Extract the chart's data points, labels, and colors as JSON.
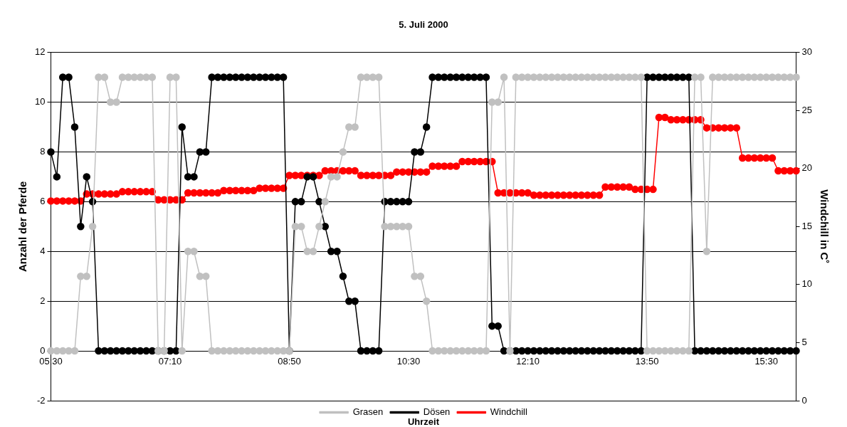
{
  "chart_data": {
    "type": "line",
    "title": "5. Juli 2000",
    "xlabel": "Uhrzeit",
    "ylabel": "Anzahl der Pferde",
    "y2label": "Windchill in C˚",
    "categories": [
      "05:30",
      null,
      null,
      null,
      null,
      null,
      null,
      null,
      null,
      null,
      null,
      null,
      null,
      null,
      null,
      null,
      null,
      null,
      null,
      null,
      "07:10",
      null,
      null,
      null,
      null,
      null,
      null,
      null,
      null,
      null,
      null,
      null,
      null,
      null,
      null,
      null,
      null,
      null,
      null,
      null,
      "08:50",
      null,
      null,
      null,
      null,
      null,
      null,
      null,
      null,
      null,
      null,
      null,
      null,
      null,
      null,
      null,
      null,
      null,
      null,
      null,
      "10:30",
      null,
      null,
      null,
      null,
      null,
      null,
      null,
      null,
      null,
      null,
      null,
      null,
      null,
      null,
      null,
      null,
      null,
      null,
      null,
      "12:10",
      null,
      null,
      null,
      null,
      null,
      null,
      null,
      null,
      null,
      null,
      null,
      null,
      null,
      null,
      null,
      null,
      null,
      null,
      null,
      "13:50",
      null,
      null,
      null,
      null,
      null,
      null,
      null,
      null,
      null,
      null,
      null,
      null,
      null,
      null,
      null,
      null,
      null,
      null,
      null,
      "15:30",
      null,
      null,
      null,
      null,
      null
    ],
    "series": [
      {
        "name": "Grasen",
        "color": "#c0c0c0",
        "values": [
          0,
          0,
          0,
          0,
          0,
          3,
          3,
          5,
          11,
          11,
          10,
          10,
          11,
          11,
          11,
          11,
          11,
          11,
          0,
          0,
          11,
          11,
          0,
          4,
          4,
          3,
          3,
          0,
          0,
          0,
          0,
          0,
          0,
          0,
          0,
          0,
          0,
          0,
          0,
          0,
          0,
          5,
          5,
          4,
          4,
          5,
          6,
          7,
          7,
          8,
          9,
          9,
          11,
          11,
          11,
          11,
          5,
          5,
          5,
          5,
          5,
          3,
          3,
          2,
          0,
          0,
          0,
          0,
          0,
          0,
          0,
          0,
          0,
          0,
          10,
          10,
          11,
          0,
          11,
          11,
          11,
          11,
          11,
          11,
          11,
          11,
          11,
          11,
          11,
          11,
          11,
          11,
          11,
          11,
          11,
          11,
          11,
          11,
          11,
          11,
          0,
          0,
          0,
          0,
          0,
          0,
          0,
          0,
          11,
          11,
          4,
          11,
          11,
          11,
          11,
          11,
          11,
          11,
          11,
          11,
          11,
          11,
          11,
          11,
          11,
          11
        ]
      },
      {
        "name": "Dösen",
        "color": "#000000",
        "values": [
          8,
          7,
          11,
          11,
          9,
          5,
          7,
          6,
          0,
          0,
          0,
          0,
          0,
          0,
          0,
          0,
          0,
          0,
          0,
          0,
          0,
          0,
          9,
          7,
          7,
          8,
          8,
          11,
          11,
          11,
          11,
          11,
          11,
          11,
          11,
          11,
          11,
          11,
          11,
          11,
          0,
          6,
          6,
          7,
          7,
          6,
          5,
          4,
          4,
          3,
          2,
          2,
          0,
          0,
          0,
          0,
          6,
          6,
          6,
          6,
          6,
          8,
          8,
          9,
          11,
          11,
          11,
          11,
          11,
          11,
          11,
          11,
          11,
          11,
          1,
          1,
          0,
          0,
          0,
          0,
          0,
          0,
          0,
          0,
          0,
          0,
          0,
          0,
          0,
          0,
          0,
          0,
          0,
          0,
          0,
          0,
          0,
          0,
          0,
          0,
          11,
          11,
          11,
          11,
          11,
          11,
          11,
          11,
          0,
          0,
          0,
          0,
          0,
          0,
          0,
          0,
          0,
          0,
          0,
          0,
          0,
          0,
          0,
          0,
          0,
          0
        ]
      },
      {
        "name": "Windchill",
        "color": "#ff0000",
        "axis": "y2",
        "values": [
          17.2,
          17.2,
          17.2,
          17.2,
          17.2,
          17.2,
          17.8,
          17.8,
          17.8,
          17.8,
          17.8,
          17.8,
          18.0,
          18.0,
          18.0,
          18.0,
          18.0,
          18.0,
          17.3,
          17.3,
          17.3,
          17.3,
          17.3,
          17.9,
          17.9,
          17.9,
          17.9,
          17.9,
          17.9,
          18.1,
          18.1,
          18.1,
          18.1,
          18.1,
          18.1,
          18.3,
          18.3,
          18.3,
          18.3,
          18.3,
          19.4,
          19.4,
          19.4,
          19.4,
          19.4,
          19.4,
          19.8,
          19.8,
          19.8,
          19.8,
          19.8,
          19.8,
          19.4,
          19.4,
          19.4,
          19.4,
          19.4,
          19.4,
          19.7,
          19.7,
          19.7,
          19.7,
          19.7,
          19.7,
          20.2,
          20.2,
          20.2,
          20.2,
          20.2,
          20.6,
          20.6,
          20.6,
          20.6,
          20.6,
          20.6,
          17.9,
          17.9,
          17.9,
          17.9,
          17.9,
          17.9,
          17.7,
          17.7,
          17.7,
          17.7,
          17.7,
          17.7,
          17.7,
          17.7,
          17.7,
          17.7,
          17.7,
          17.7,
          18.4,
          18.4,
          18.4,
          18.4,
          18.4,
          18.2,
          18.2,
          18.2,
          18.2,
          24.4,
          24.4,
          24.2,
          24.2,
          24.2,
          24.2,
          24.2,
          24.2,
          23.5,
          23.5,
          23.5,
          23.5,
          23.5,
          23.5,
          20.9,
          20.9,
          20.9,
          20.9,
          20.9,
          20.9,
          19.8,
          19.8,
          19.8,
          19.8
        ]
      }
    ],
    "ylim": [
      -2,
      12
    ],
    "yticks": [
      -2,
      0,
      2,
      4,
      6,
      8,
      10,
      12
    ],
    "y2lim": [
      0,
      30
    ],
    "y2ticks": [
      0,
      5,
      10,
      15,
      20,
      25,
      30
    ],
    "grid": "y",
    "legend": "bottom",
    "marker": "circle",
    "line_style": "solid"
  }
}
